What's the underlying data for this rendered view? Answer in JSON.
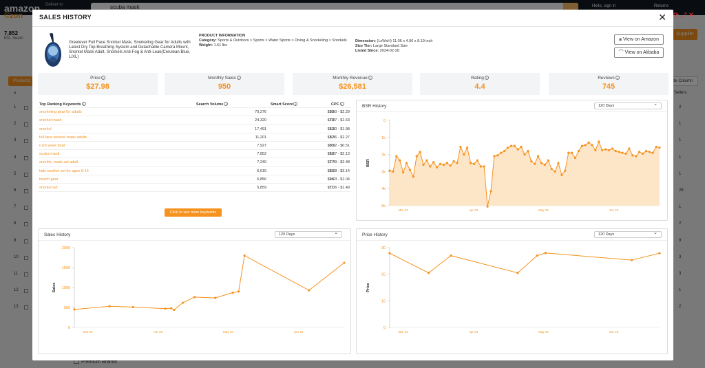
{
  "background": {
    "logo": "amazon",
    "deliver_to": "Deliver to",
    "search_query": "scuba mask",
    "hello": "Hello, sign in",
    "returns": "Returns",
    "ext_logo": "©zon",
    "result_count": "7,852",
    "est_label": "Est. Searc",
    "products_label": "Products(",
    "table_header": "#",
    "row_numbers": [
      "1",
      "2",
      "3",
      "4",
      "5",
      "6",
      "7",
      "8",
      "9",
      "10",
      "11",
      "12",
      "13"
    ],
    "supplier_button": "Supplier",
    "hide_column": "ide Column",
    "sellers_header": "e Sellers",
    "seller_counts": [
      "2",
      "1",
      "1",
      "1",
      "1",
      "26",
      "1",
      "2",
      "9",
      "3",
      "3",
      "1",
      "2"
    ],
    "premium_brands": "Premium Brands"
  },
  "modal": {
    "title": "SALES HISTORY",
    "close": "✕",
    "product": {
      "title": "Greetever Full Face Snorkel Mask, Snorkeling Gear for Adults with Latest Dry Top Breathing System and Detachable Camera Mount, Snorkel Mask Adult, Snorkels Anti-Fog & Anti-Leak(Cerulean Blue, L/XL)",
      "info_heading": "PRODUCT INFORMATION",
      "category_label": "Category:",
      "category": "Sports & Outdoors > Sports > Water Sports > Diving & Snorkeling > Snorkels",
      "weight_label": "Weight:",
      "weight": "1.51 lbs",
      "dimension_label": "Dimension:",
      "dimension": "(LxWxH) 11.06 x 4.96 x 8.19 inch",
      "size_tier_label": "Size Tier:",
      "size_tier": "Large Standard Size",
      "listed_label": "Listed Since:",
      "listed": "2024-02-28"
    },
    "buttons": {
      "amazon": "View on Amazon",
      "alibaba": "View on Alibaba"
    },
    "stats": [
      {
        "label": "Price",
        "value": "$27.98"
      },
      {
        "label": "Monthly Sales",
        "value": "950"
      },
      {
        "label": "Monthly Revenue",
        "value": "$26,581"
      },
      {
        "label": "Rating",
        "value": "4.4"
      },
      {
        "label": "Reviews",
        "value": "745"
      }
    ],
    "keywords": {
      "headers": {
        "keyword": "Top Ranking Keywords",
        "volume": "Search Volume",
        "score": "Smart Score",
        "cpc": "CPC"
      },
      "rows": [
        {
          "keyword": "snorkeling gear for adults",
          "volume": "70,276",
          "score": "90",
          "cpc": "$1.50 - $2.29"
        },
        {
          "keyword": "snorkel mask",
          "volume": "24,320",
          "score": "78",
          "cpc": "$1.37 - $1.63"
        },
        {
          "keyword": "snorkel",
          "volume": "17,491",
          "score": "63",
          "cpc": "$1.30 - $1.98"
        },
        {
          "keyword": "full face snorkel mask adults",
          "volume": "11,201",
          "score": "82",
          "cpc": "$1.36 - $2.27"
        },
        {
          "keyword": "rush wave boat",
          "volume": "7,927",
          "score": "89",
          "cpc": "$0.32 - $0.51"
        },
        {
          "keyword": "scuba mask",
          "volume": "7,852",
          "score": "68",
          "cpc": "$1.27 - $2.13"
        },
        {
          "keyword": "snorkle, mask set adult",
          "volume": "7,240",
          "score": "77",
          "cpc": "$1.49 - $2.48"
        },
        {
          "keyword": "kids snorkel set for ages 8-14",
          "volume": "6,615",
          "score": "63",
          "cpc": "$2.08 - $3.14"
        },
        {
          "keyword": "beach gear",
          "volume": "5,856",
          "score": "16",
          "cpc": "$0.63 - $1.04"
        },
        {
          "keyword": "snorkel set",
          "volume": "5,859",
          "score": "71",
          "cpc": "$1.06 - $1.49"
        }
      ],
      "more_button": "Click to see more keywords"
    },
    "range_option": "120 Days"
  },
  "chart_data": [
    {
      "type": "area",
      "title": "BSR History",
      "ylabel": "BSR",
      "y_inverted": true,
      "ylim": [
        0,
        5000
      ],
      "yticks": [
        "0",
        "1k",
        "2k",
        "3k",
        "4k",
        "5k"
      ],
      "xticks": [
        "Mar 23",
        "Apr 23",
        "May 23",
        "Jun 23"
      ],
      "x": [
        0,
        1,
        2,
        3,
        4,
        5,
        6,
        7,
        8,
        9,
        10,
        11,
        12,
        13,
        14,
        15,
        16,
        17,
        18,
        19,
        20,
        21,
        22,
        23,
        24,
        25,
        26,
        27,
        28,
        29,
        30,
        31,
        32,
        33,
        34,
        35,
        36,
        37,
        38,
        39,
        40,
        41,
        42,
        43,
        44,
        45,
        46,
        47,
        48,
        49,
        50,
        51,
        52,
        53,
        54,
        55,
        56,
        57,
        58,
        59,
        60,
        61,
        62,
        63,
        64,
        65,
        66,
        67,
        68,
        69,
        70,
        71,
        72,
        73,
        74,
        75,
        76,
        77,
        78,
        79,
        80
      ],
      "values": [
        2950,
        3000,
        2100,
        2350,
        3050,
        2500,
        2900,
        3300,
        2100,
        1850,
        2600,
        2350,
        2700,
        2450,
        2750,
        2550,
        2600,
        2500,
        2650,
        2400,
        2500,
        1550,
        2000,
        1600,
        2500,
        2550,
        2350,
        2700,
        2700,
        5050,
        4150,
        2100,
        2050,
        1900,
        1800,
        1600,
        1500,
        1500,
        1700,
        1550,
        2000,
        1800,
        2400,
        2550,
        2100,
        2500,
        2600,
        2350,
        2850,
        3000,
        2500,
        3200,
        2950,
        1900,
        1900,
        2200,
        1800,
        1500,
        1450,
        1300,
        1450,
        1750,
        1250,
        1750,
        1700,
        1750,
        1650,
        1800,
        1850,
        1900,
        1950,
        1650,
        2050,
        2100,
        1850,
        1950,
        1800,
        1850,
        1900,
        1550,
        1600
      ]
    },
    {
      "type": "line",
      "title": "Sales History",
      "ylabel": "Sales",
      "ylim": [
        0,
        2000
      ],
      "yticks": [
        "0",
        "500",
        "1000",
        "1500",
        "2000"
      ],
      "xticks": [
        "Mar 23",
        "Apr 23",
        "May 23",
        "Jun 23"
      ],
      "x": [
        0,
        12,
        20,
        31,
        33,
        34,
        37,
        41,
        48,
        54,
        56,
        58,
        80,
        92
      ],
      "values": [
        450,
        530,
        510,
        470,
        480,
        440,
        620,
        760,
        740,
        870,
        900,
        1800,
        930,
        1620
      ]
    },
    {
      "type": "line",
      "title": "Price History",
      "ylabel": "Price",
      "ylim": [
        0,
        30
      ],
      "yticks": [
        "0",
        "10",
        "20",
        "30"
      ],
      "xticks": [
        "Mar 23",
        "Apr 23",
        "May 23",
        "Jun 23"
      ],
      "x": [
        0,
        14,
        22,
        46,
        53,
        56,
        87,
        97
      ],
      "values": [
        27.9,
        20.5,
        27,
        20.5,
        27,
        28,
        25.3,
        27.9
      ]
    }
  ]
}
